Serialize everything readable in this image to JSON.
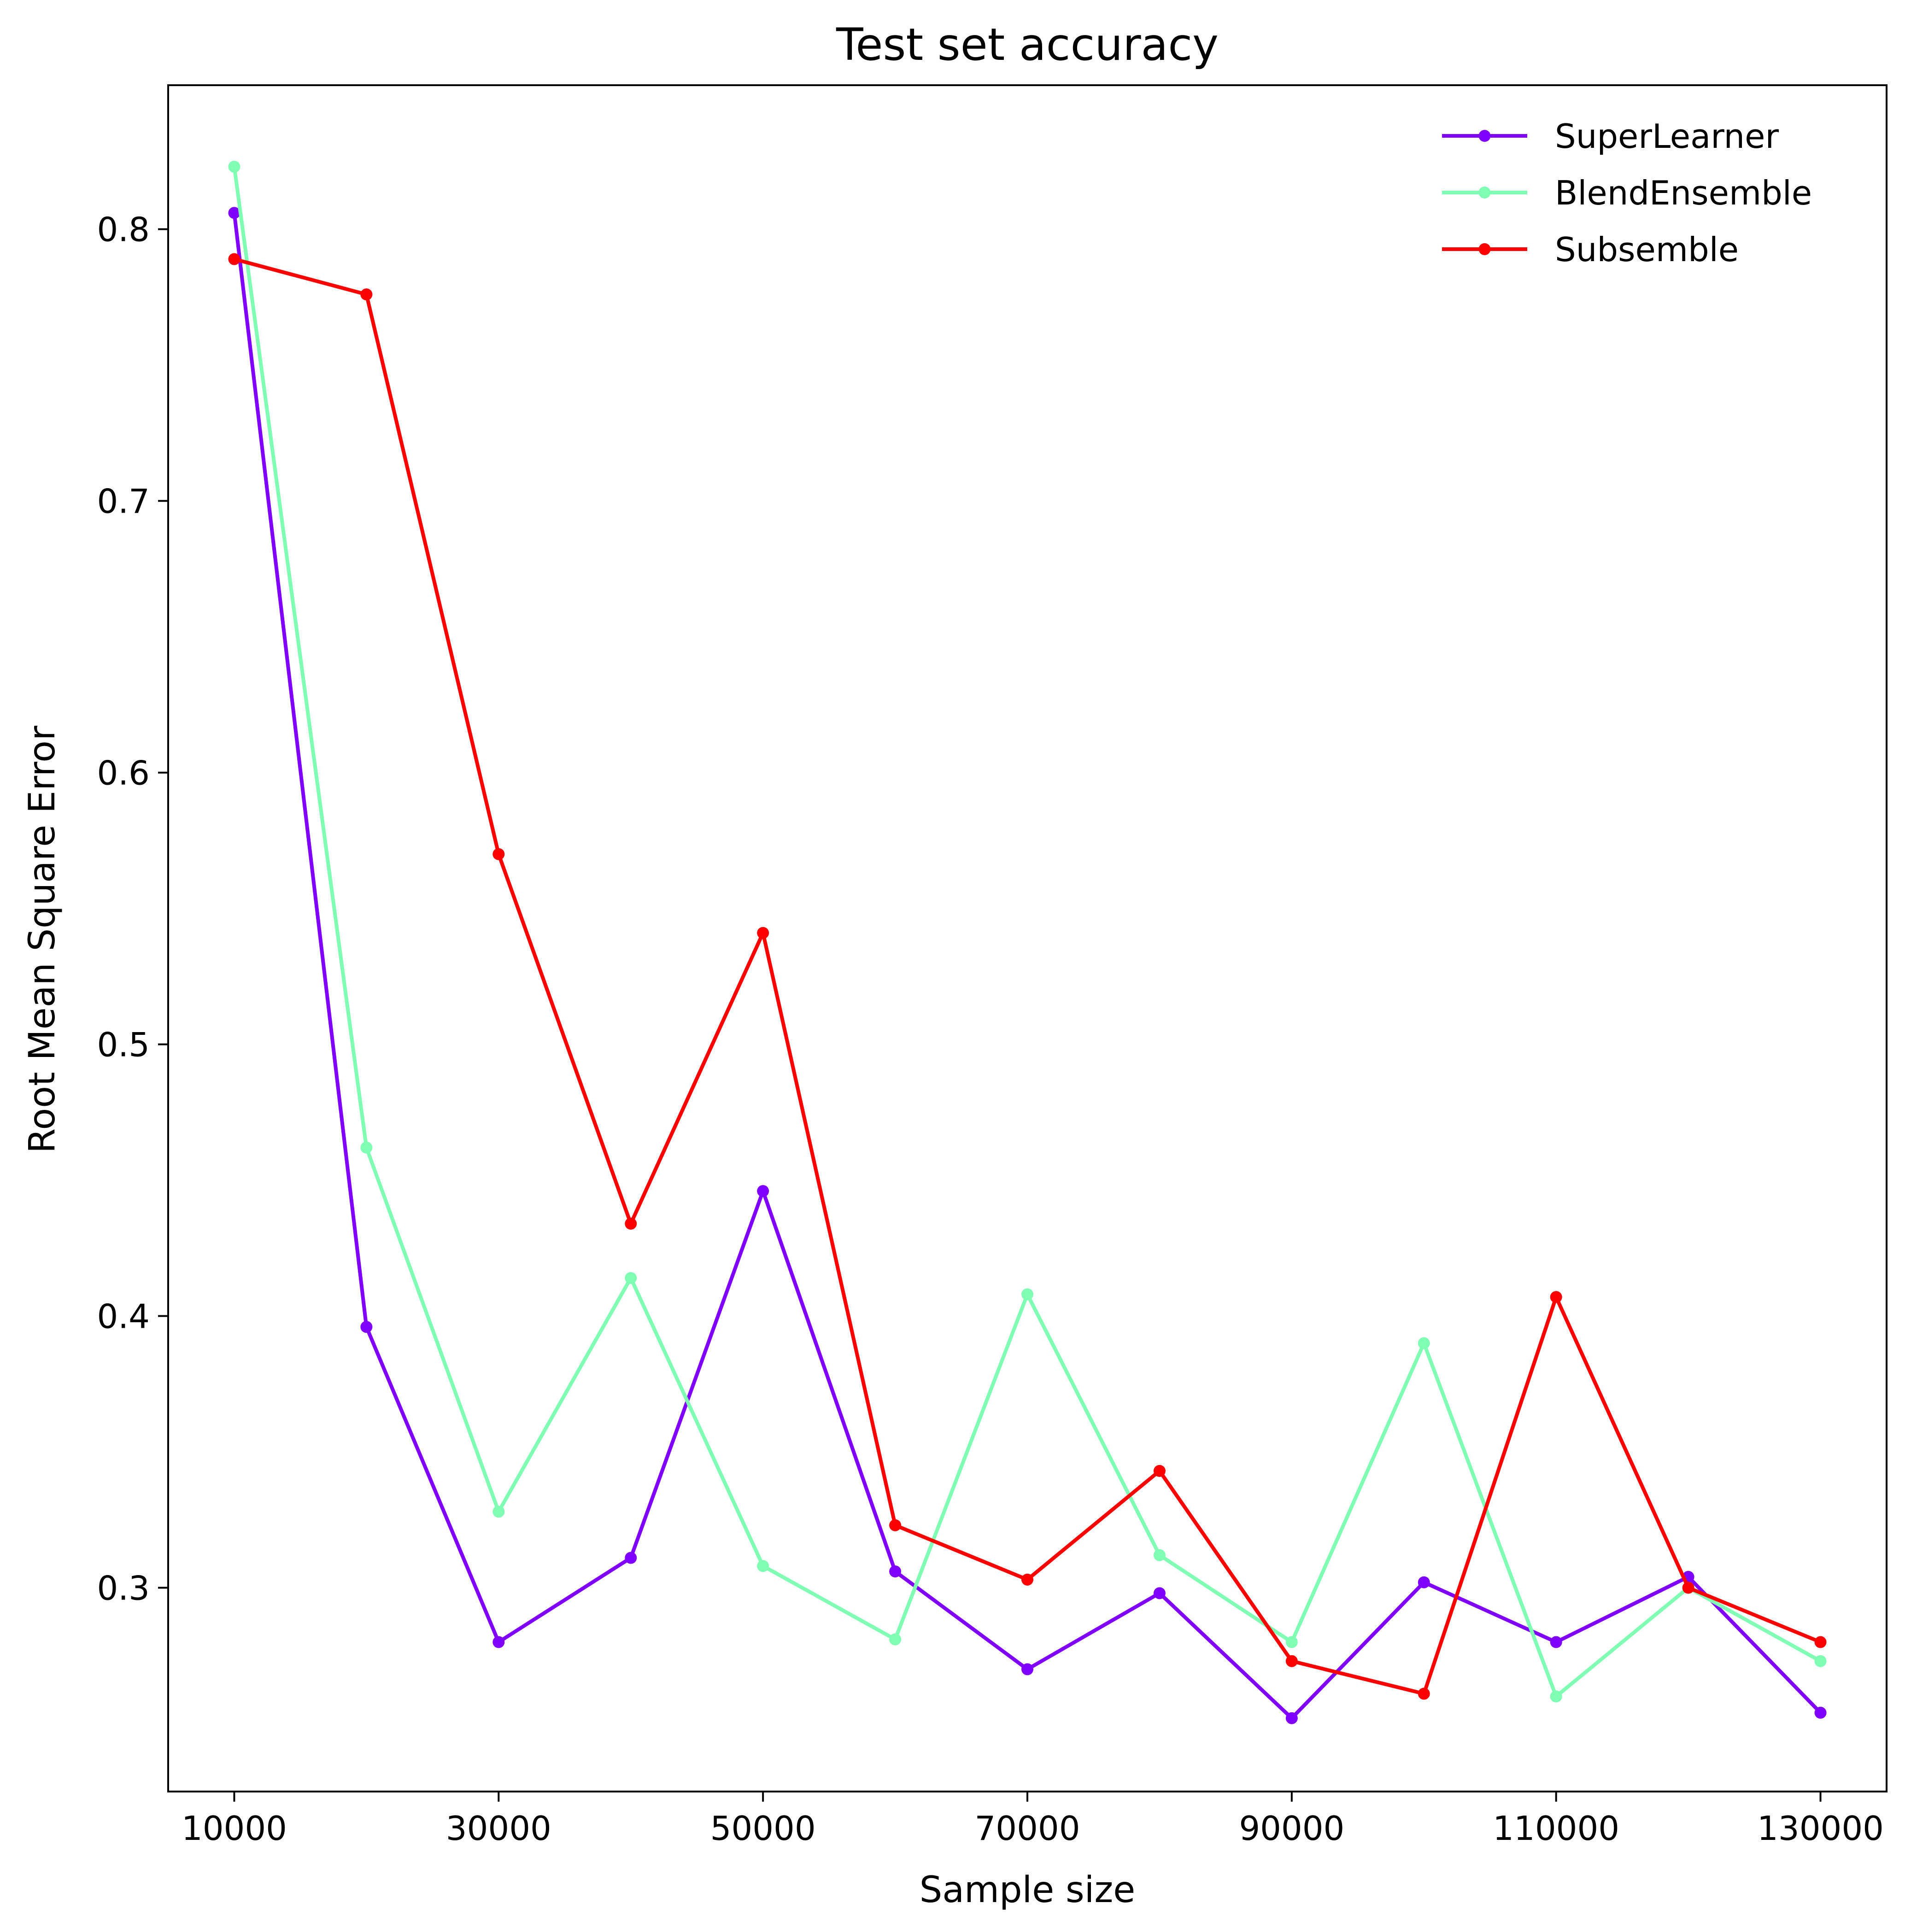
{
  "chart_data": {
    "type": "line",
    "title": "Test set accuracy",
    "xlabel": "Sample size",
    "ylabel": "Root Mean Square Error",
    "xlim": [
      5000,
      135000
    ],
    "ylim": [
      0.225,
      0.853
    ],
    "xticks": [
      10000,
      30000,
      50000,
      70000,
      90000,
      110000,
      130000
    ],
    "xtick_labels": [
      "10000",
      "30000",
      "50000",
      "70000",
      "90000",
      "110000",
      "130000"
    ],
    "yticks": [
      0.3,
      0.4,
      0.5,
      0.6,
      0.7,
      0.8
    ],
    "ytick_labels": [
      "0.3",
      "0.4",
      "0.5",
      "0.6",
      "0.7",
      "0.8"
    ],
    "grid": false,
    "legend_position": "top-right",
    "x": [
      10000,
      20000,
      30000,
      40000,
      50000,
      60000,
      70000,
      80000,
      90000,
      100000,
      110000,
      120000,
      130000
    ],
    "series": [
      {
        "name": "SuperLearner",
        "color": "#8000ff",
        "values": [
          0.806,
          0.396,
          0.28,
          0.311,
          0.446,
          0.306,
          0.27,
          0.298,
          0.252,
          0.302,
          0.28,
          0.304,
          0.254
        ]
      },
      {
        "name": "BlendEnsemble",
        "color": "#80ffb4",
        "values": [
          0.823,
          0.462,
          0.328,
          0.414,
          0.308,
          0.281,
          0.408,
          0.312,
          0.28,
          0.39,
          0.26,
          0.3,
          0.273
        ]
      },
      {
        "name": "Subsemble",
        "color": "#ff0000",
        "values": [
          0.789,
          0.776,
          0.57,
          0.434,
          0.541,
          0.323,
          0.303,
          0.343,
          0.273,
          0.261,
          0.407,
          0.3,
          0.28
        ]
      }
    ]
  }
}
